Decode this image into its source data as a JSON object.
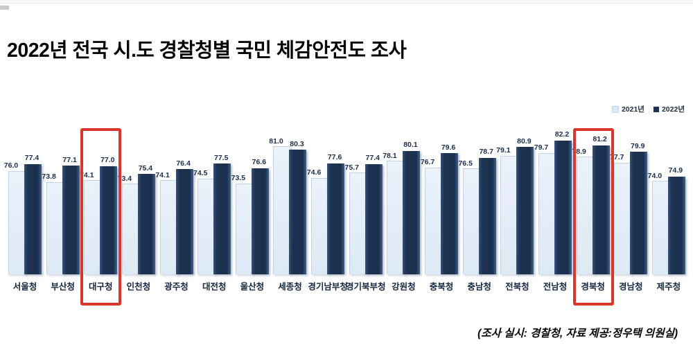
{
  "title": "2022년 전국 시.도 경찰청별 국민 체감안전도 조사",
  "footer": "(조사 실시: 경찰청, 자료 제공:정우택 의원실)",
  "legend": {
    "position": "top-right",
    "items": [
      {
        "label": "2021년",
        "color": "#dde9f5"
      },
      {
        "label": "2022년",
        "color": "#1d3351"
      }
    ]
  },
  "colors": {
    "bar_2021": "#dde9f5",
    "bar_2022": "#1d3351",
    "value_text": "#1b2e4b",
    "highlight_border": "#da362b",
    "background": "#ffffff"
  },
  "chart_data": {
    "type": "bar",
    "title": "2022년 전국 시.도 경찰청별 국민 체감안전도 조사",
    "xlabel": "",
    "ylabel": "",
    "ylim": [
      55,
      85
    ],
    "grid": false,
    "axis_visible": false,
    "value_labels": true,
    "legend_position": "top-right",
    "categories": [
      "서울청",
      "부산청",
      "대구청",
      "인천청",
      "광주청",
      "대전청",
      "울산청",
      "세종청",
      "경기남부청",
      "경기북부청",
      "강원청",
      "충북청",
      "충남청",
      "전북청",
      "전남청",
      "경북청",
      "경남청",
      "제주청"
    ],
    "series": [
      {
        "name": "2021년",
        "values": [
          76.0,
          73.8,
          74.1,
          73.4,
          74.1,
          74.5,
          73.5,
          81.0,
          74.6,
          75.7,
          78.1,
          76.7,
          76.5,
          79.1,
          79.7,
          78.9,
          77.7,
          74.0
        ]
      },
      {
        "name": "2022년",
        "values": [
          77.4,
          77.1,
          77.0,
          75.4,
          76.4,
          77.5,
          76.6,
          80.3,
          77.6,
          77.4,
          80.1,
          79.6,
          78.7,
          80.9,
          82.2,
          81.2,
          79.9,
          74.9
        ]
      }
    ],
    "highlighted_categories": [
      "대구청",
      "경북청"
    ]
  }
}
